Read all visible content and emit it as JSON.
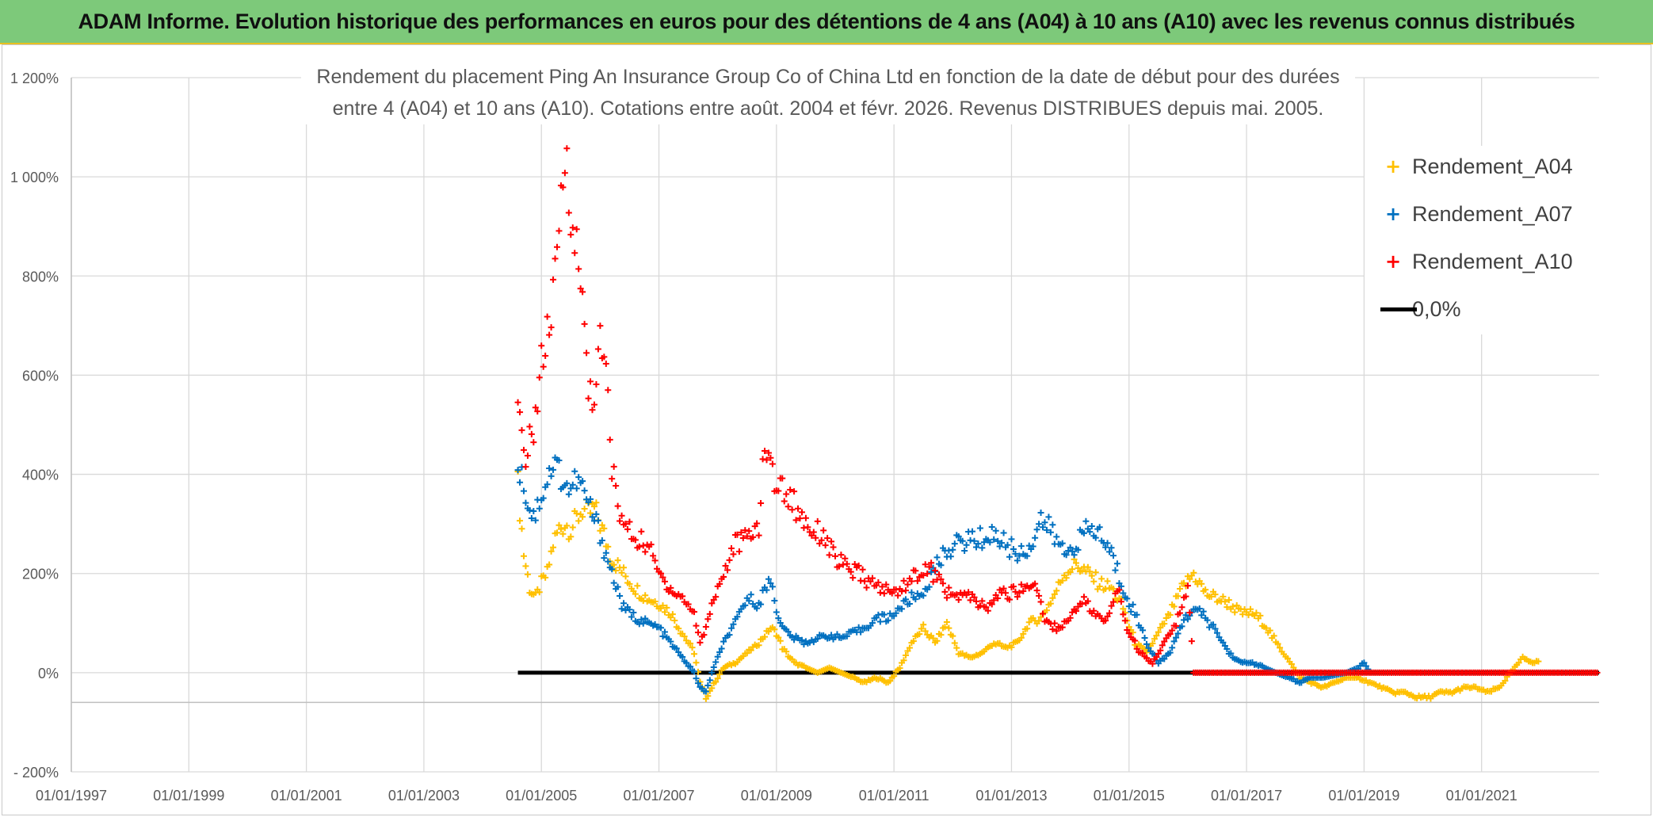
{
  "header": {
    "banner": "ADAM Informe. Evolution historique des performances en euros pour des détentions de 4 ans (A04) à 10 ans (A10) avec les revenus connus distribués"
  },
  "chart_data": {
    "type": "scatter",
    "title_line1": "Rendement du placement Ping An Insurance Group Co of China Ltd en fonction de la date de début pour des durées",
    "title_line2": "entre 4 (A04) et 10 ans (A10). Cotations entre août. 2004 et févr. 2026. Revenus DISTRIBUES depuis mai. 2005.",
    "xlabel": "",
    "ylabel": "",
    "x_range": [
      1997.0,
      2023.0
    ],
    "ylim": [
      -200,
      1200
    ],
    "y_ticks": [
      -200,
      0,
      200,
      400,
      600,
      800,
      1000,
      1200
    ],
    "y_tick_labels": [
      "- 200%",
      "0%",
      "200%",
      "400%",
      "600%",
      "800%",
      "1 000%",
      "1 200%"
    ],
    "x_ticks": [
      1997,
      1999,
      2001,
      2003,
      2005,
      2007,
      2009,
      2011,
      2013,
      2015,
      2017,
      2019,
      2021
    ],
    "x_tick_labels": [
      "01/01/1997",
      "01/01/1999",
      "01/01/2001",
      "01/01/2003",
      "01/01/2005",
      "01/01/2007",
      "01/01/2009",
      "01/01/2011",
      "01/01/2013",
      "01/01/2015",
      "01/01/2017",
      "01/01/2019",
      "01/01/2021"
    ],
    "grid": true,
    "legend_position": "top-right",
    "series": [
      {
        "name": "Rendement_A04",
        "color": "#ffc000",
        "marker": "plus",
        "points": [
          [
            2004.6,
            380
          ],
          [
            2004.7,
            240
          ],
          [
            2004.8,
            170
          ],
          [
            2004.9,
            150
          ],
          [
            2005.0,
            180
          ],
          [
            2005.1,
            200
          ],
          [
            2005.2,
            260
          ],
          [
            2005.3,
            290
          ],
          [
            2005.4,
            300
          ],
          [
            2005.5,
            290
          ],
          [
            2005.6,
            310
          ],
          [
            2005.7,
            330
          ],
          [
            2005.8,
            320
          ],
          [
            2005.9,
            330
          ],
          [
            2006.0,
            300
          ],
          [
            2006.2,
            230
          ],
          [
            2006.4,
            200
          ],
          [
            2006.6,
            170
          ],
          [
            2006.8,
            150
          ],
          [
            2007.0,
            140
          ],
          [
            2007.2,
            120
          ],
          [
            2007.4,
            80
          ],
          [
            2007.6,
            40
          ],
          [
            2007.7,
            -20
          ],
          [
            2007.8,
            -50
          ],
          [
            2007.9,
            -30
          ],
          [
            2008.1,
            10
          ],
          [
            2008.3,
            20
          ],
          [
            2008.5,
            40
          ],
          [
            2008.7,
            60
          ],
          [
            2008.9,
            90
          ],
          [
            2009.0,
            80
          ],
          [
            2009.1,
            50
          ],
          [
            2009.3,
            20
          ],
          [
            2009.5,
            10
          ],
          [
            2009.7,
            0
          ],
          [
            2009.9,
            10
          ],
          [
            2010.1,
            0
          ],
          [
            2010.3,
            -10
          ],
          [
            2010.5,
            -20
          ],
          [
            2010.7,
            -10
          ],
          [
            2010.9,
            -20
          ],
          [
            2011.1,
            10
          ],
          [
            2011.3,
            60
          ],
          [
            2011.5,
            90
          ],
          [
            2011.7,
            60
          ],
          [
            2011.9,
            100
          ],
          [
            2012.1,
            40
          ],
          [
            2012.3,
            30
          ],
          [
            2012.5,
            40
          ],
          [
            2012.7,
            60
          ],
          [
            2012.9,
            50
          ],
          [
            2013.1,
            60
          ],
          [
            2013.3,
            100
          ],
          [
            2013.5,
            110
          ],
          [
            2013.7,
            150
          ],
          [
            2013.9,
            200
          ],
          [
            2014.1,
            220
          ],
          [
            2014.3,
            200
          ],
          [
            2014.5,
            180
          ],
          [
            2014.7,
            170
          ],
          [
            2014.9,
            130
          ],
          [
            2015.1,
            60
          ],
          [
            2015.3,
            40
          ],
          [
            2015.5,
            80
          ],
          [
            2015.7,
            120
          ],
          [
            2015.9,
            170
          ],
          [
            2016.1,
            200
          ],
          [
            2016.3,
            160
          ],
          [
            2016.5,
            150
          ],
          [
            2016.7,
            140
          ],
          [
            2016.9,
            120
          ],
          [
            2017.1,
            120
          ],
          [
            2017.3,
            100
          ],
          [
            2017.5,
            60
          ],
          [
            2017.7,
            30
          ],
          [
            2017.9,
            -10
          ],
          [
            2018.1,
            -20
          ],
          [
            2018.3,
            -30
          ],
          [
            2018.5,
            -20
          ],
          [
            2018.7,
            -10
          ],
          [
            2018.9,
            -10
          ],
          [
            2019.1,
            -20
          ],
          [
            2019.3,
            -30
          ],
          [
            2019.5,
            -40
          ],
          [
            2019.7,
            -40
          ],
          [
            2019.9,
            -50
          ],
          [
            2020.1,
            -50
          ],
          [
            2020.3,
            -40
          ],
          [
            2020.5,
            -40
          ],
          [
            2020.7,
            -30
          ],
          [
            2020.9,
            -30
          ],
          [
            2021.1,
            -40
          ],
          [
            2021.3,
            -30
          ],
          [
            2021.5,
            0
          ],
          [
            2021.7,
            30
          ],
          [
            2021.9,
            20
          ],
          [
            2022.0,
            25
          ]
        ]
      },
      {
        "name": "Rendement_A07",
        "color": "#0070c0",
        "marker": "plus",
        "points": [
          [
            2004.6,
            430
          ],
          [
            2004.7,
            380
          ],
          [
            2004.8,
            330
          ],
          [
            2004.9,
            320
          ],
          [
            2005.0,
            360
          ],
          [
            2005.1,
            390
          ],
          [
            2005.2,
            420
          ],
          [
            2005.3,
            410
          ],
          [
            2005.4,
            380
          ],
          [
            2005.5,
            370
          ],
          [
            2005.6,
            390
          ],
          [
            2005.7,
            370
          ],
          [
            2005.8,
            340
          ],
          [
            2005.9,
            310
          ],
          [
            2006.0,
            280
          ],
          [
            2006.2,
            200
          ],
          [
            2006.4,
            130
          ],
          [
            2006.6,
            110
          ],
          [
            2006.8,
            100
          ],
          [
            2007.0,
            90
          ],
          [
            2007.2,
            60
          ],
          [
            2007.4,
            30
          ],
          [
            2007.6,
            0
          ],
          [
            2007.7,
            -30
          ],
          [
            2007.8,
            -40
          ],
          [
            2007.9,
            0
          ],
          [
            2008.1,
            60
          ],
          [
            2008.3,
            100
          ],
          [
            2008.5,
            150
          ],
          [
            2008.7,
            140
          ],
          [
            2008.9,
            190
          ],
          [
            2009.0,
            130
          ],
          [
            2009.1,
            90
          ],
          [
            2009.3,
            70
          ],
          [
            2009.5,
            60
          ],
          [
            2009.7,
            70
          ],
          [
            2009.9,
            75
          ],
          [
            2010.1,
            70
          ],
          [
            2010.3,
            80
          ],
          [
            2010.5,
            90
          ],
          [
            2010.7,
            110
          ],
          [
            2010.9,
            110
          ],
          [
            2011.1,
            130
          ],
          [
            2011.3,
            150
          ],
          [
            2011.5,
            160
          ],
          [
            2011.7,
            210
          ],
          [
            2011.9,
            250
          ],
          [
            2012.1,
            260
          ],
          [
            2012.3,
            270
          ],
          [
            2012.5,
            270
          ],
          [
            2012.7,
            280
          ],
          [
            2012.9,
            260
          ],
          [
            2013.1,
            240
          ],
          [
            2013.3,
            250
          ],
          [
            2013.5,
            310
          ],
          [
            2013.7,
            280
          ],
          [
            2013.9,
            240
          ],
          [
            2014.1,
            260
          ],
          [
            2014.3,
            290
          ],
          [
            2014.5,
            280
          ],
          [
            2014.7,
            240
          ],
          [
            2014.9,
            170
          ],
          [
            2015.1,
            120
          ],
          [
            2015.3,
            60
          ],
          [
            2015.5,
            20
          ],
          [
            2015.7,
            40
          ],
          [
            2015.9,
            100
          ],
          [
            2016.1,
            130
          ],
          [
            2016.3,
            110
          ],
          [
            2016.5,
            80
          ],
          [
            2016.7,
            40
          ],
          [
            2016.9,
            20
          ],
          [
            2017.1,
            20
          ],
          [
            2017.3,
            10
          ],
          [
            2017.5,
            0
          ],
          [
            2017.7,
            -10
          ],
          [
            2017.9,
            -20
          ],
          [
            2018.1,
            -10
          ],
          [
            2018.3,
            -10
          ],
          [
            2018.5,
            -5
          ],
          [
            2018.7,
            0
          ],
          [
            2018.9,
            10
          ],
          [
            2019.0,
            20
          ],
          [
            2019.1,
            0
          ]
        ]
      },
      {
        "name": "Rendement_A10",
        "color": "#ff0000",
        "marker": "plus",
        "points": [
          [
            2004.6,
            520
          ],
          [
            2004.7,
            440
          ],
          [
            2004.8,
            460
          ],
          [
            2004.9,
            520
          ],
          [
            2005.0,
            620
          ],
          [
            2005.1,
            680
          ],
          [
            2005.2,
            740
          ],
          [
            2005.3,
            880
          ],
          [
            2005.4,
            1050
          ],
          [
            2005.5,
            960
          ],
          [
            2005.6,
            840
          ],
          [
            2005.7,
            750
          ],
          [
            2005.8,
            580
          ],
          [
            2005.9,
            560
          ],
          [
            2006.0,
            660
          ],
          [
            2006.1,
            600
          ],
          [
            2006.2,
            420
          ],
          [
            2006.3,
            330
          ],
          [
            2006.4,
            300
          ],
          [
            2006.6,
            270
          ],
          [
            2006.8,
            260
          ],
          [
            2007.0,
            200
          ],
          [
            2007.2,
            170
          ],
          [
            2007.4,
            150
          ],
          [
            2007.6,
            120
          ],
          [
            2007.7,
            60
          ],
          [
            2007.8,
            90
          ],
          [
            2007.9,
            140
          ],
          [
            2008.1,
            200
          ],
          [
            2008.3,
            260
          ],
          [
            2008.5,
            270
          ],
          [
            2008.7,
            300
          ],
          [
            2008.8,
            460
          ],
          [
            2008.9,
            420
          ],
          [
            2009.0,
            380
          ],
          [
            2009.2,
            360
          ],
          [
            2009.4,
            320
          ],
          [
            2009.6,
            290
          ],
          [
            2009.8,
            280
          ],
          [
            2010.0,
            230
          ],
          [
            2010.2,
            210
          ],
          [
            2010.4,
            200
          ],
          [
            2010.6,
            180
          ],
          [
            2010.8,
            170
          ],
          [
            2011.0,
            160
          ],
          [
            2011.2,
            180
          ],
          [
            2011.4,
            200
          ],
          [
            2011.6,
            210
          ],
          [
            2011.8,
            180
          ],
          [
            2012.0,
            150
          ],
          [
            2012.2,
            160
          ],
          [
            2012.4,
            140
          ],
          [
            2012.6,
            130
          ],
          [
            2012.8,
            160
          ],
          [
            2013.0,
            160
          ],
          [
            2013.2,
            170
          ],
          [
            2013.4,
            180
          ],
          [
            2013.6,
            100
          ],
          [
            2013.8,
            90
          ],
          [
            2014.0,
            110
          ],
          [
            2014.2,
            150
          ],
          [
            2014.4,
            120
          ],
          [
            2014.6,
            100
          ],
          [
            2014.8,
            170
          ],
          [
            2015.0,
            80
          ],
          [
            2015.2,
            40
          ],
          [
            2015.4,
            20
          ],
          [
            2015.6,
            60
          ],
          [
            2015.8,
            100
          ],
          [
            2016.0,
            170
          ],
          [
            2016.1,
            0
          ],
          [
            2016.5,
            0
          ],
          [
            2017.0,
            0
          ],
          [
            2017.5,
            0
          ],
          [
            2018.0,
            0
          ],
          [
            2018.5,
            0
          ],
          [
            2019.0,
            0
          ],
          [
            2019.5,
            0
          ],
          [
            2020.0,
            0
          ],
          [
            2020.5,
            0
          ],
          [
            2021.0,
            0
          ],
          [
            2021.5,
            0
          ],
          [
            2022.0,
            0
          ],
          [
            2022.5,
            0
          ],
          [
            2023.0,
            0
          ]
        ]
      },
      {
        "name": "0,0%",
        "color": "#000000",
        "marker": "line",
        "points": [
          [
            2004.6,
            0
          ],
          [
            2023.0,
            0
          ]
        ]
      }
    ]
  }
}
